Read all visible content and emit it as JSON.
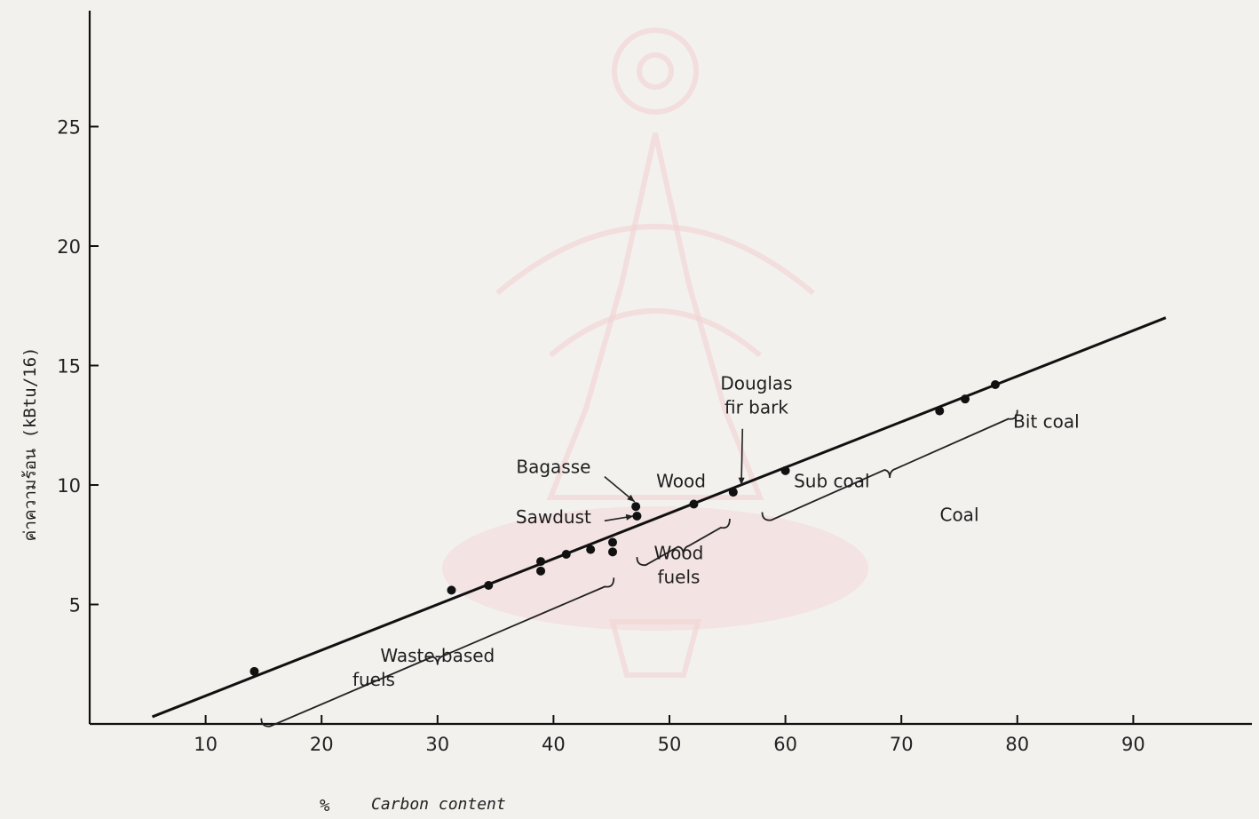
{
  "chart_data": {
    "type": "scatter",
    "title": "",
    "xlabel_prefix": "%",
    "xlabel": "Carbon content",
    "ylabel": "ค่าความร้อน  (kBtu/16)",
    "xlim": [
      0,
      100
    ],
    "ylim": [
      0,
      30
    ],
    "x_ticks": [
      10,
      20,
      30,
      40,
      50,
      60,
      70,
      80,
      90
    ],
    "y_ticks": [
      5,
      10,
      15,
      20,
      25
    ],
    "grid": false,
    "points": [
      {
        "x": 14.2,
        "y": 2.2
      },
      {
        "x": 31.2,
        "y": 5.6
      },
      {
        "x": 34.4,
        "y": 5.8
      },
      {
        "x": 38.9,
        "y": 6.8
      },
      {
        "x": 38.9,
        "y": 6.4
      },
      {
        "x": 41.1,
        "y": 7.1
      },
      {
        "x": 43.2,
        "y": 7.3
      },
      {
        "x": 45.1,
        "y": 7.6
      },
      {
        "x": 45.1,
        "y": 7.2
      },
      {
        "x": 47.1,
        "y": 9.1
      },
      {
        "x": 47.2,
        "y": 8.7
      },
      {
        "x": 52.1,
        "y": 9.2
      },
      {
        "x": 55.5,
        "y": 9.7
      },
      {
        "x": 60.0,
        "y": 10.6
      },
      {
        "x": 73.3,
        "y": 13.1
      },
      {
        "x": 75.5,
        "y": 13.6
      },
      {
        "x": 78.1,
        "y": 14.2
      }
    ],
    "fit_line": {
      "x": [
        5.4,
        92.8
      ],
      "y": [
        0.3,
        17.0
      ]
    },
    "annotations": [
      {
        "text": "Douglas",
        "x": 57.5,
        "y": 14.0
      },
      {
        "text": "fir bark",
        "x": 57.5,
        "y": 13.0
      },
      {
        "text": "Bit coal",
        "x": 82.5,
        "y": 12.4
      },
      {
        "text": "Bagasse",
        "x": 40.0,
        "y": 10.5
      },
      {
        "text": "Wood",
        "x": 51.0,
        "y": 9.9
      },
      {
        "text": "Sub coal",
        "x": 64.0,
        "y": 9.9
      },
      {
        "text": "Sawdust",
        "x": 40.0,
        "y": 8.4
      },
      {
        "text": "Coal",
        "x": 75.0,
        "y": 8.5
      },
      {
        "text": "Wood",
        "x": 50.8,
        "y": 6.9
      },
      {
        "text": "fuels",
        "x": 50.8,
        "y": 5.9
      },
      {
        "text": "Waste-based",
        "x": 30.0,
        "y": 2.6
      },
      {
        "text": "fuels",
        "x": 24.5,
        "y": 1.6
      }
    ]
  }
}
